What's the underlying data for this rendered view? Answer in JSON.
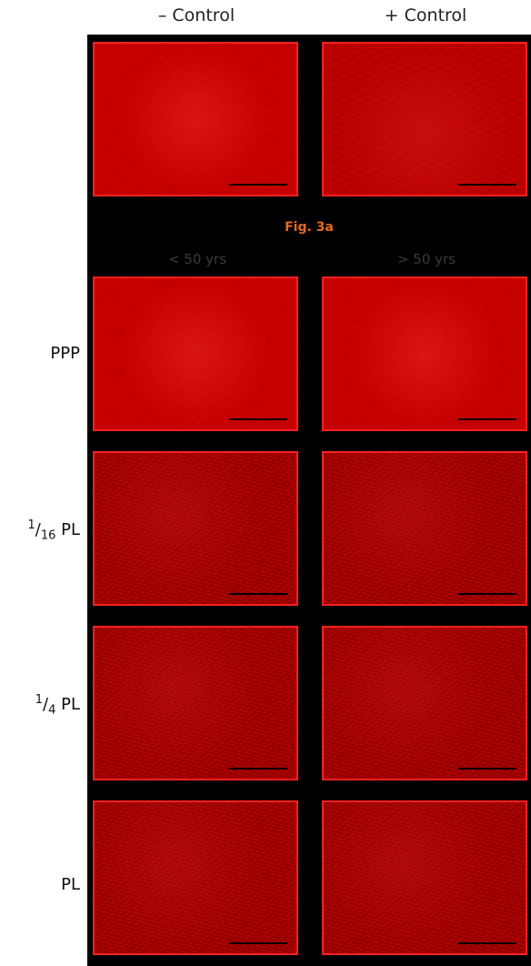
{
  "columns": {
    "minus_control": "– Control",
    "plus_control": "+ Control"
  },
  "figure_label": "Fig. 3a",
  "age_groups": {
    "young": "< 50 yrs",
    "old": "> 50 yrs"
  },
  "rows": {
    "ppp": "PPP",
    "pl_1_16": {
      "num": "1",
      "slash": "/",
      "den": "16",
      "unit": " PL"
    },
    "pl_1_4": {
      "num": "1",
      "slash": "/",
      "den": "4",
      "unit": " PL"
    },
    "pl": "PL"
  },
  "colors": {
    "tile_border": "#ff2020",
    "tile_fill": "#c40000",
    "panel": "#000000",
    "figure_label": "#e66a1e"
  }
}
